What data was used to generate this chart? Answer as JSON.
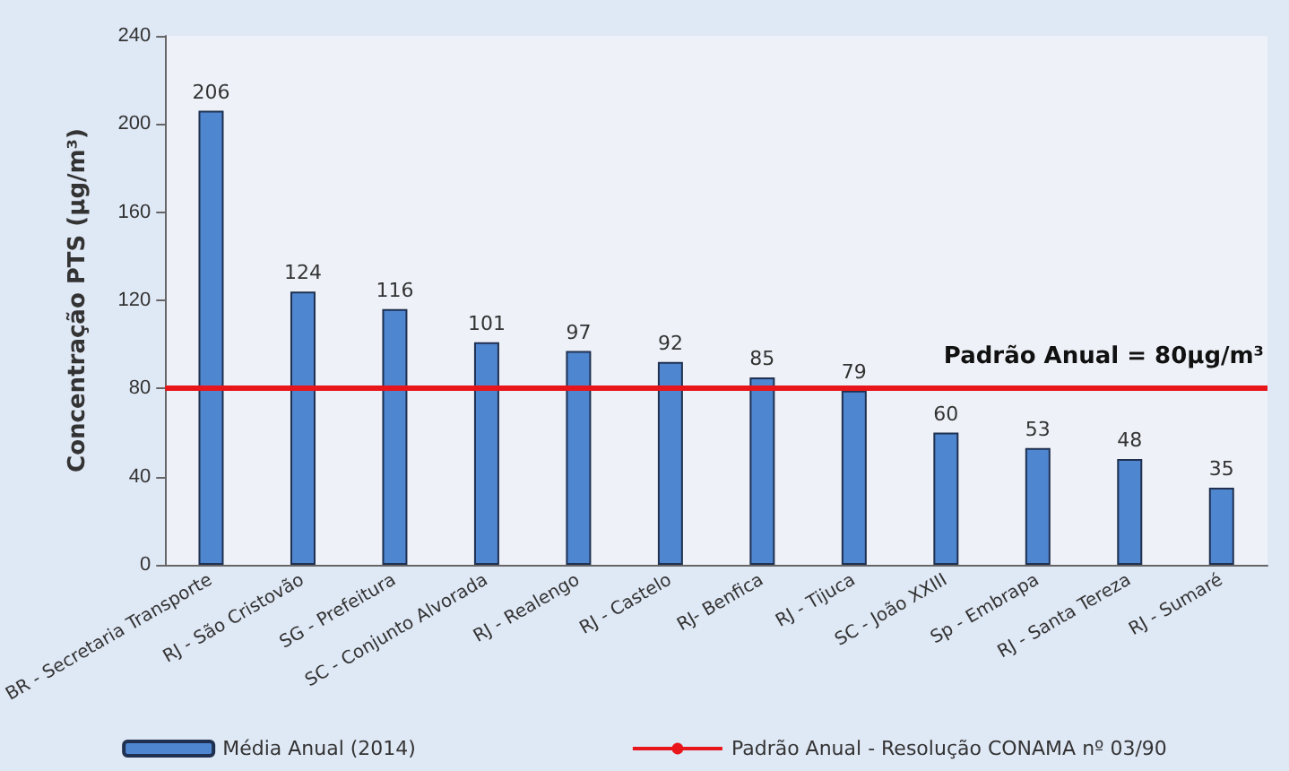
{
  "chart_data": {
    "type": "bar",
    "ylabel": "Concentração PTS (µg/m³)",
    "categories": [
      "BR - Secretaria Transporte",
      "RJ - São Cristovão",
      "SG - Prefeitura",
      "SC - Conjunto Alvorada",
      "RJ - Realengo",
      "RJ - Castelo",
      "RJ- Benfica",
      "RJ - Tijuca",
      "SC - João XXIII",
      "Sp - Embrapa",
      "RJ - Santa Tereza",
      "RJ - Sumaré"
    ],
    "series": [
      {
        "name": "Média Anual (2014)",
        "color": "#4f86d0",
        "values": [
          206,
          124,
          116,
          101,
          97,
          92,
          85,
          79,
          60,
          53,
          48,
          35
        ]
      }
    ],
    "ylim": [
      0,
      240
    ],
    "yticks": [
      0,
      40,
      80,
      120,
      160,
      200,
      240
    ],
    "grid": false,
    "legend": "bottom",
    "data_labels": true,
    "ref_lines": [
      {
        "axis": "y",
        "value": 80,
        "label": "Padrão Anual - Resolução CONAMA nº 03/90",
        "color": "#e8161b"
      }
    ],
    "annotations": [
      {
        "text": "Padrão Anual = 80µg/m³",
        "y": 80
      }
    ]
  }
}
